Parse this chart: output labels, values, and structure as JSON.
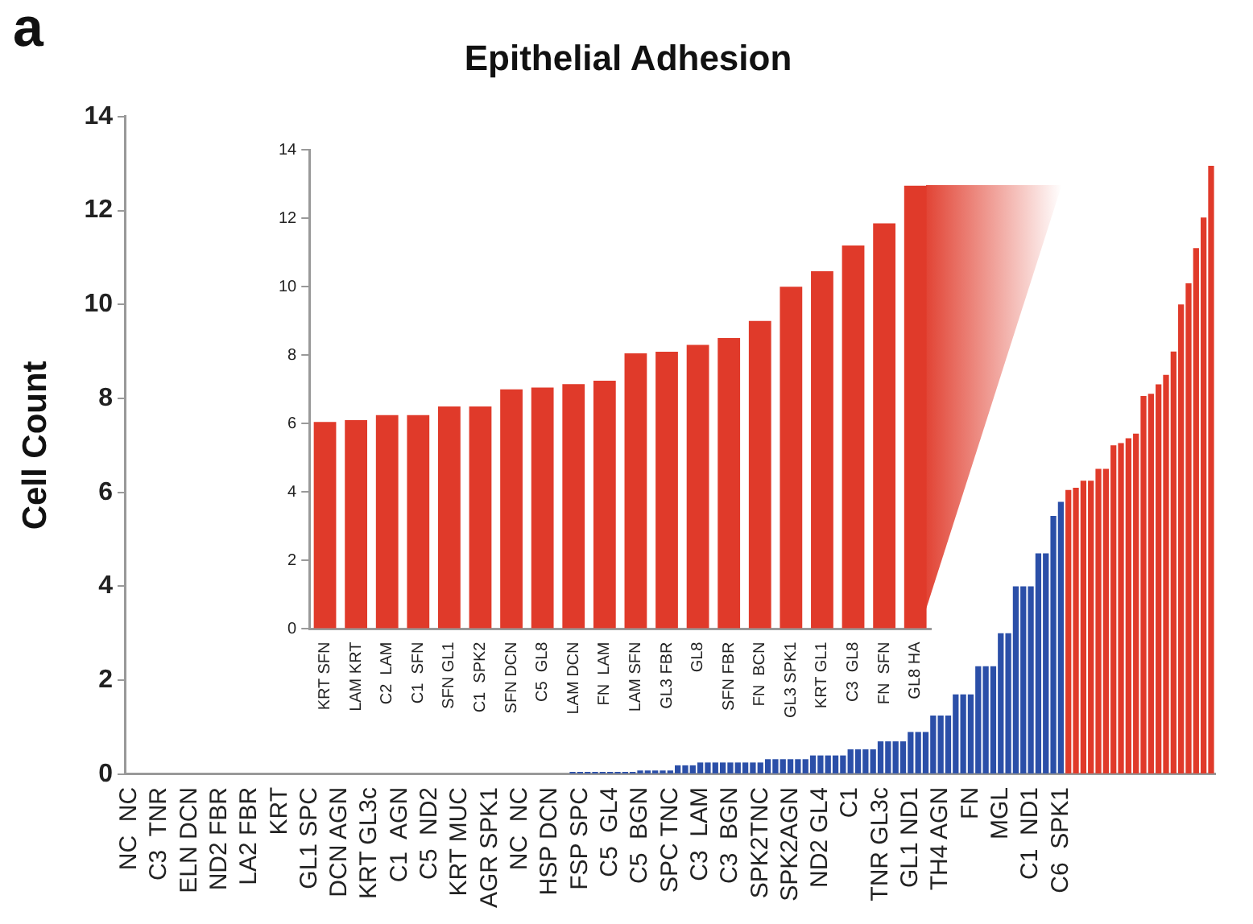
{
  "chart_data": [
    {
      "type": "bar",
      "title": "Epithelial Adhesion",
      "ylabel": "Cell Count",
      "annotations": [
        "a"
      ],
      "ylim": [
        0,
        14
      ],
      "yticks": [
        0,
        2,
        4,
        6,
        8,
        10,
        12,
        14
      ],
      "grid": false,
      "categories": [
        "NC  NC",
        null,
        null,
        null,
        "C3  TNR",
        null,
        null,
        null,
        "ELN DCN",
        null,
        null,
        null,
        "ND2 FBR",
        null,
        null,
        null,
        "LA2 FBR",
        null,
        null,
        null,
        "KRT",
        null,
        null,
        null,
        "GL1 SPC",
        null,
        null,
        null,
        "DCN AGN",
        null,
        null,
        null,
        "KRT GL3c",
        null,
        null,
        null,
        "C1  AGN",
        null,
        null,
        null,
        "C5  ND2",
        null,
        null,
        null,
        "KRT MUC",
        null,
        null,
        null,
        "AGR SPK1",
        null,
        null,
        null,
        "NC  NC",
        null,
        null,
        null,
        "HSP DCN",
        null,
        null,
        null,
        "FSP SPC",
        null,
        null,
        null,
        "C5  GL4",
        null,
        null,
        null,
        "C5  BGN",
        null,
        null,
        null,
        "SPC TNC",
        null,
        null,
        null,
        "C3  LAM",
        null,
        null,
        null,
        "C3  BGN",
        null,
        null,
        null,
        "SPK2TNC",
        null,
        null,
        null,
        "SPK2AGN",
        null,
        null,
        null,
        "ND2 GL4",
        null,
        null,
        null,
        "C1",
        null,
        null,
        null,
        "TNR GL3c",
        null,
        null,
        null,
        "GL1 ND1",
        null,
        null,
        null,
        "TH4 AGN",
        null,
        null,
        null,
        "FN",
        null,
        null,
        null,
        "MGL",
        null,
        null,
        null,
        "C1  ND1",
        null,
        null,
        null,
        "C6  SPK1",
        null,
        null,
        null,
        null,
        null,
        null,
        null,
        null,
        null,
        null,
        null,
        null,
        null,
        null,
        null,
        null,
        null,
        null,
        null,
        null
      ],
      "values": [
        0,
        0,
        0,
        0,
        0,
        0,
        0,
        0,
        0,
        0,
        0,
        0,
        0,
        0,
        0,
        0,
        0,
        0,
        0,
        0,
        0,
        0,
        0,
        0,
        0,
        0,
        0,
        0,
        0,
        0,
        0,
        0,
        0,
        0,
        0,
        0,
        0,
        0,
        0,
        0,
        0,
        0,
        0,
        0,
        0,
        0,
        0,
        0,
        0,
        0,
        0,
        0,
        0,
        0,
        0,
        0,
        0,
        0,
        0,
        0.05,
        0.05,
        0.05,
        0.05,
        0.05,
        0.05,
        0.05,
        0.05,
        0.05,
        0.08,
        0.08,
        0.08,
        0.08,
        0.08,
        0.19,
        0.19,
        0.19,
        0.25,
        0.25,
        0.25,
        0.25,
        0.25,
        0.25,
        0.25,
        0.25,
        0.25,
        0.32,
        0.32,
        0.32,
        0.32,
        0.32,
        0.32,
        0.4,
        0.4,
        0.4,
        0.4,
        0.4,
        0.53,
        0.53,
        0.53,
        0.53,
        0.7,
        0.7,
        0.7,
        0.7,
        0.9,
        0.9,
        0.9,
        1.25,
        1.25,
        1.25,
        1.7,
        1.7,
        1.7,
        2.3,
        2.3,
        2.3,
        3.0,
        3.0,
        4.0,
        4.0,
        4.0,
        4.7,
        4.7,
        5.5,
        5.8,
        6.05,
        6.1,
        6.25,
        6.25,
        6.5,
        6.5,
        7.0,
        7.05,
        7.15,
        7.25,
        8.05,
        8.1,
        8.3,
        8.5,
        9.0,
        10.0,
        10.45,
        11.2,
        11.85,
        12.95
      ],
      "colors": [
        "#2b4fa8",
        "#2b4fa8",
        "#2b4fa8",
        "#2b4fa8",
        "#2b4fa8",
        "#2b4fa8",
        "#2b4fa8",
        "#2b4fa8",
        "#2b4fa8",
        "#2b4fa8",
        "#2b4fa8",
        "#2b4fa8",
        "#2b4fa8",
        "#2b4fa8",
        "#2b4fa8",
        "#2b4fa8",
        "#2b4fa8",
        "#2b4fa8",
        "#2b4fa8",
        "#2b4fa8",
        "#2b4fa8",
        "#2b4fa8",
        "#2b4fa8",
        "#2b4fa8",
        "#2b4fa8",
        "#2b4fa8",
        "#2b4fa8",
        "#2b4fa8",
        "#2b4fa8",
        "#2b4fa8",
        "#2b4fa8",
        "#2b4fa8",
        "#2b4fa8",
        "#2b4fa8",
        "#2b4fa8",
        "#2b4fa8",
        "#2b4fa8",
        "#2b4fa8",
        "#2b4fa8",
        "#2b4fa8",
        "#2b4fa8",
        "#2b4fa8",
        "#2b4fa8",
        "#2b4fa8",
        "#2b4fa8",
        "#2b4fa8",
        "#2b4fa8",
        "#2b4fa8",
        "#2b4fa8",
        "#2b4fa8",
        "#2b4fa8",
        "#2b4fa8",
        "#2b4fa8",
        "#2b4fa8",
        "#2b4fa8",
        "#2b4fa8",
        "#2b4fa8",
        "#2b4fa8",
        "#2b4fa8",
        "#2b4fa8",
        "#2b4fa8",
        "#2b4fa8",
        "#2b4fa8",
        "#2b4fa8",
        "#2b4fa8",
        "#2b4fa8",
        "#2b4fa8",
        "#2b4fa8",
        "#2b4fa8",
        "#2b4fa8",
        "#2b4fa8",
        "#2b4fa8",
        "#2b4fa8",
        "#2b4fa8",
        "#2b4fa8",
        "#2b4fa8",
        "#2b4fa8",
        "#2b4fa8",
        "#2b4fa8",
        "#2b4fa8",
        "#2b4fa8",
        "#2b4fa8",
        "#2b4fa8",
        "#2b4fa8",
        "#2b4fa8",
        "#2b4fa8",
        "#2b4fa8",
        "#2b4fa8",
        "#2b4fa8",
        "#2b4fa8",
        "#2b4fa8",
        "#2b4fa8",
        "#2b4fa8",
        "#2b4fa8",
        "#2b4fa8",
        "#2b4fa8",
        "#2b4fa8",
        "#2b4fa8",
        "#2b4fa8",
        "#2b4fa8",
        "#2b4fa8",
        "#2b4fa8",
        "#2b4fa8",
        "#2b4fa8",
        "#2b4fa8",
        "#2b4fa8",
        "#2b4fa8",
        "#2b4fa8",
        "#2b4fa8",
        "#2b4fa8",
        "#2b4fa8",
        "#2b4fa8",
        "#2b4fa8",
        "#2b4fa8",
        "#2b4fa8",
        "#2b4fa8",
        "#2b4fa8",
        "#2b4fa8",
        "#2b4fa8",
        "#2b4fa8",
        "#2b4fa8",
        "#2b4fa8",
        "#2b4fa8",
        "#2b4fa8",
        "#2b4fa8",
        "#e03a2a",
        "#e03a2a",
        "#e03a2a",
        "#e03a2a",
        "#e03a2a",
        "#e03a2a",
        "#e03a2a",
        "#e03a2a",
        "#e03a2a",
        "#e03a2a",
        "#e03a2a",
        "#e03a2a",
        "#e03a2a",
        "#e03a2a",
        "#e03a2a",
        "#e03a2a",
        "#e03a2a",
        "#e03a2a",
        "#e03a2a",
        "#e03a2a"
      ]
    },
    {
      "type": "bar",
      "ylim": [
        0,
        14
      ],
      "yticks": [
        0,
        2,
        4,
        6,
        8,
        10,
        12,
        14
      ],
      "grid": false,
      "color": "#e03a2a",
      "categories": [
        "KRT SFN",
        "LAM KRT",
        "C2  LAM",
        "C1  SFN",
        "SFN GL1",
        "C1  SPK2",
        "SFN DCN",
        "C5  GL8",
        "LAM DCN",
        "FN  LAM",
        "LAM SFN",
        "GL3 FBR",
        "GL8",
        "SFN FBR",
        "FN  BCN",
        "GL3 SPK1",
        "KRT GL1",
        "C3  GL8",
        "FN  SFN",
        "GL8 HA"
      ],
      "values": [
        6.05,
        6.1,
        6.25,
        6.25,
        6.5,
        6.5,
        7.0,
        7.05,
        7.15,
        7.25,
        8.05,
        8.1,
        8.3,
        8.5,
        9.0,
        10.0,
        10.45,
        11.2,
        11.85,
        12.95
      ]
    }
  ]
}
